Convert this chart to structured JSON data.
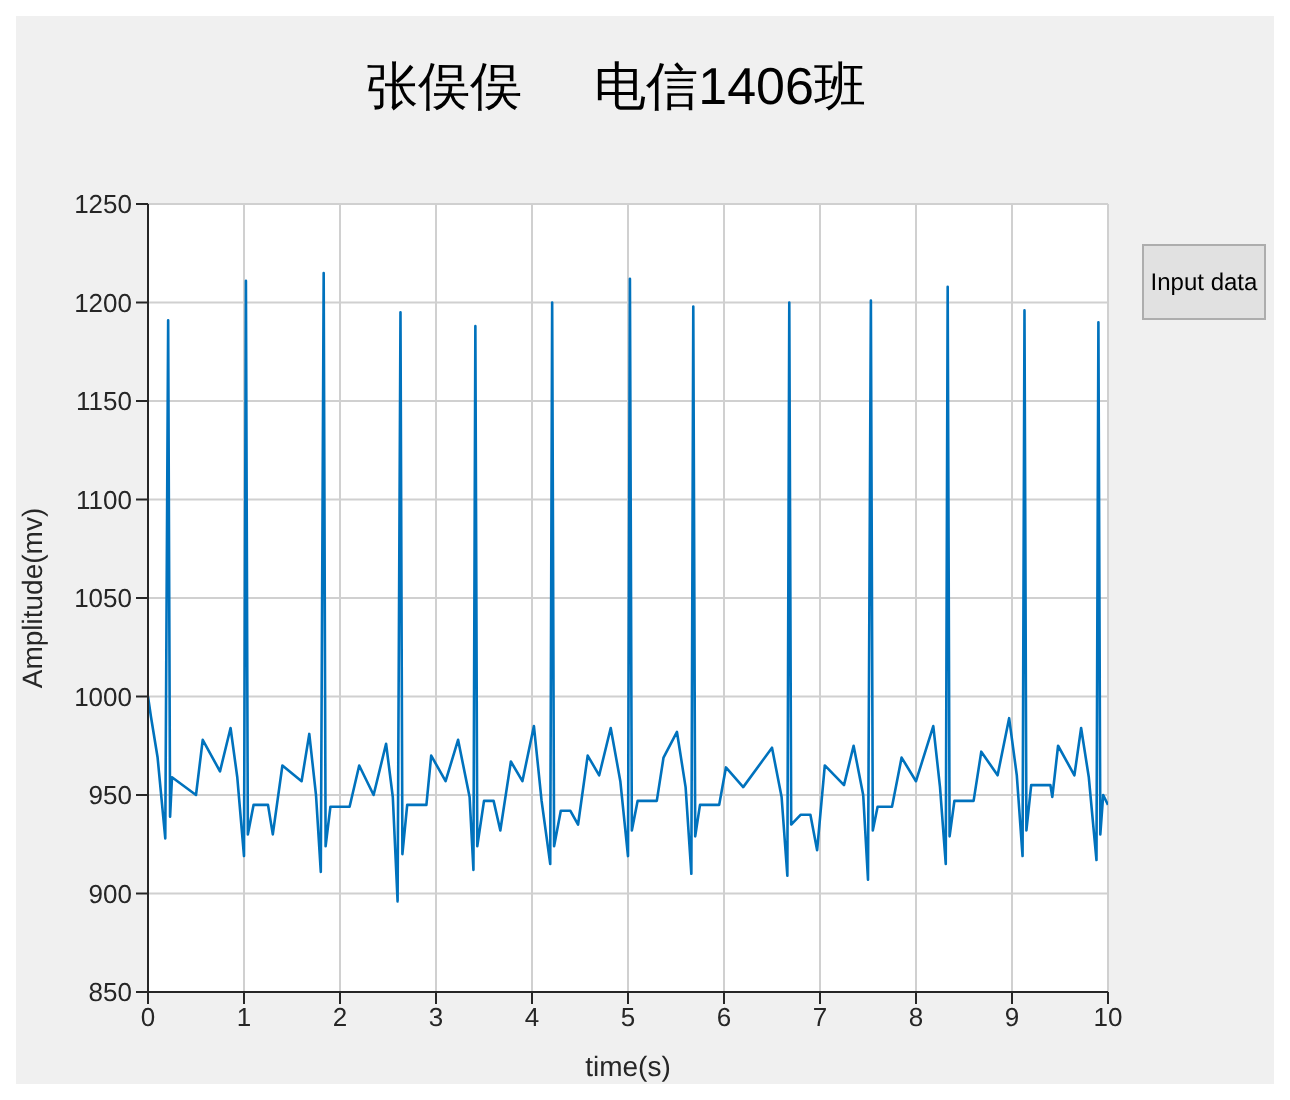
{
  "chart_data": {
    "type": "line",
    "title": "张俣俣     电信1406班",
    "xlabel": "time(s)",
    "ylabel": "Amplitude(mv)",
    "annotations": [
      "Input data"
    ],
    "x": [
      0,
      0.03,
      0.1,
      0.18,
      0.21,
      0.23,
      0.25,
      0.5,
      0.57,
      0.75,
      0.86,
      0.93,
      1.0,
      1.02,
      1.04,
      1.1,
      1.25,
      1.3,
      1.4,
      1.6,
      1.68,
      1.75,
      1.8,
      1.83,
      1.85,
      1.9,
      2.1,
      2.2,
      2.35,
      2.48,
      2.55,
      2.6,
      2.63,
      2.65,
      2.7,
      2.9,
      2.95,
      3.1,
      3.23,
      3.35,
      3.39,
      3.41,
      3.43,
      3.5,
      3.6,
      3.67,
      3.78,
      3.9,
      4.02,
      4.1,
      4.19,
      4.21,
      4.23,
      4.3,
      4.4,
      4.48,
      4.58,
      4.7,
      4.82,
      4.92,
      5.0,
      5.02,
      5.04,
      5.1,
      5.3,
      5.37,
      5.51,
      5.6,
      5.66,
      5.68,
      5.7,
      5.75,
      5.95,
      6.02,
      6.2,
      6.5,
      6.6,
      6.66,
      6.68,
      6.7,
      6.8,
      6.9,
      6.97,
      7.05,
      7.25,
      7.35,
      7.45,
      7.5,
      7.53,
      7.55,
      7.6,
      7.75,
      7.85,
      8.0,
      8.18,
      8.25,
      8.31,
      8.33,
      8.35,
      8.4,
      8.6,
      8.68,
      8.85,
      8.97,
      9.05,
      9.11,
      9.13,
      9.15,
      9.2,
      9.4,
      9.42,
      9.48,
      9.65,
      9.72,
      9.8,
      9.88,
      9.9,
      9.92,
      9.95,
      10
    ],
    "series": [
      {
        "color": "#0072bd",
        "values": [
          1000,
          990,
          969,
          928,
          1191,
          939,
          959,
          950,
          978,
          962,
          984,
          959,
          919,
          1211,
          930,
          945,
          945,
          930,
          965,
          957,
          981,
          950,
          911,
          1215,
          924,
          944,
          944,
          965,
          950,
          976,
          949,
          896,
          1195,
          920,
          945,
          945,
          970,
          957,
          978,
          949,
          912,
          1188,
          924,
          947,
          947,
          932,
          967,
          957,
          985,
          947,
          915,
          1200,
          924,
          942,
          942,
          935,
          970,
          960,
          984,
          957,
          919,
          1212,
          932,
          947,
          947,
          969,
          982,
          954,
          910,
          1198,
          929,
          945,
          945,
          964,
          954,
          974,
          949,
          909,
          1200,
          935,
          940,
          940,
          922,
          965,
          955,
          975,
          950,
          907,
          1201,
          932,
          944,
          944,
          969,
          957,
          985,
          954,
          915,
          1208,
          929,
          947,
          947,
          972,
          960,
          989,
          960,
          919,
          1196,
          932,
          955,
          955,
          949,
          975,
          960,
          984,
          959,
          917,
          1190,
          930,
          950,
          945
        ]
      }
    ],
    "xlim": [
      0,
      10
    ],
    "xticks": [
      0,
      1,
      2,
      3,
      4,
      5,
      6,
      7,
      8,
      9,
      10
    ],
    "ylim": [
      850,
      1250
    ],
    "yticks": [
      850,
      900,
      950,
      1000,
      1050,
      1100,
      1150,
      1200,
      1250
    ],
    "grid": true,
    "marker": "none",
    "line_style": "solid"
  }
}
